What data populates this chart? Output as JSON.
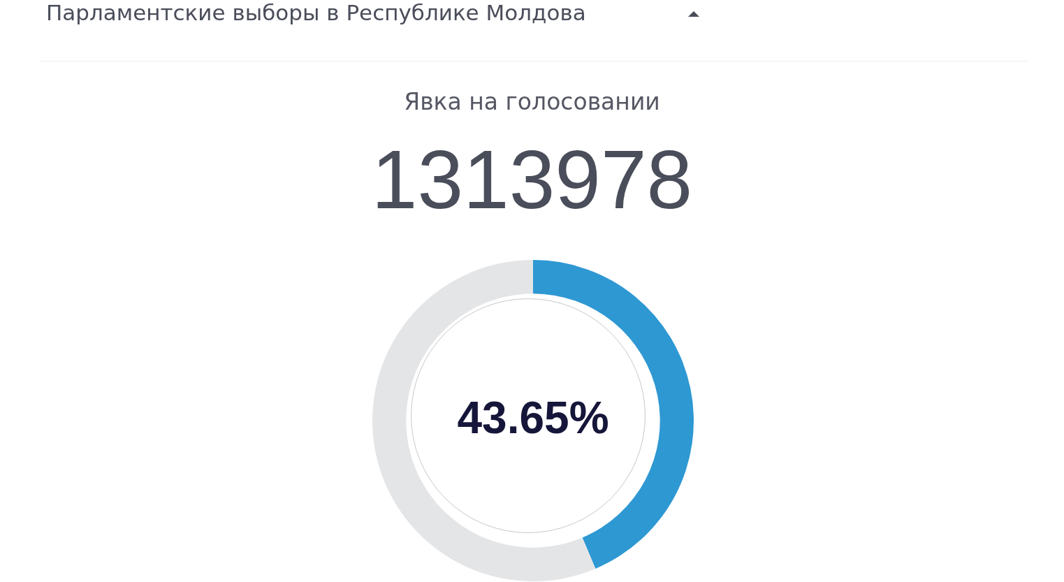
{
  "chart_data": {
    "type": "donut",
    "title": "Парламентские выборы в Республике Молдова",
    "subtitle": "Явка на голосовании",
    "annotations": [
      "1313978"
    ],
    "categories": [
      null,
      null
    ],
    "values": [
      43.65,
      56.35
    ],
    "colors": [
      "#2e98d3",
      "#e4e5e7"
    ],
    "value_labels": [
      "43.65%",
      null
    ]
  }
}
